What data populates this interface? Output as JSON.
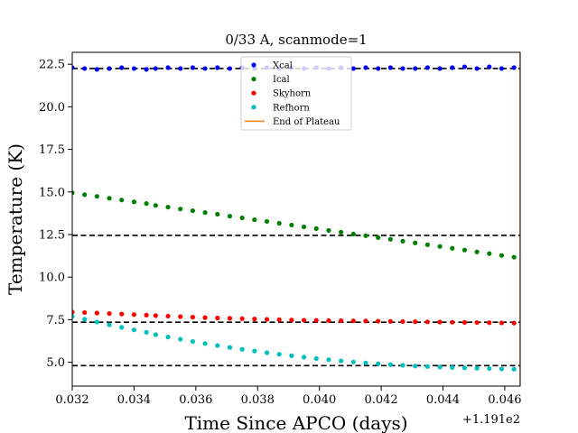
{
  "chart_data": {
    "type": "scatter",
    "title": "0/33 A, scanmode=1",
    "xlabel": "Time Since APCO (days)",
    "ylabel": "Temperature (K)",
    "x_offset_label": "+1.191e2",
    "xlim": [
      0.032,
      0.0465
    ],
    "ylim": [
      3.6,
      23.2
    ],
    "xticks": [
      0.032,
      0.034,
      0.036,
      0.038,
      0.04,
      0.042,
      0.044,
      0.046
    ],
    "xtick_labels": [
      "0.032",
      "0.034",
      "0.036",
      "0.038",
      "0.040",
      "0.042",
      "0.044",
      "0.046"
    ],
    "yticks": [
      5.0,
      7.5,
      10.0,
      12.5,
      15.0,
      17.5,
      20.0,
      22.5
    ],
    "ytick_labels": [
      "5.0",
      "7.5",
      "10.0",
      "12.5",
      "15.0",
      "17.5",
      "20.0",
      "22.5"
    ],
    "legend_position": "upper-center",
    "grid": false,
    "x": [
      0.032,
      0.0324,
      0.0328,
      0.0332,
      0.0336,
      0.034,
      0.0344,
      0.0347,
      0.0351,
      0.0355,
      0.0359,
      0.0363,
      0.0367,
      0.0371,
      0.0375,
      0.0379,
      0.0383,
      0.0387,
      0.0391,
      0.0395,
      0.0399,
      0.0403,
      0.0407,
      0.0411,
      0.0415,
      0.0419,
      0.0423,
      0.0427,
      0.0431,
      0.0435,
      0.0439,
      0.0443,
      0.0447,
      0.0451,
      0.0455,
      0.0459,
      0.0463
    ],
    "series": [
      {
        "name": "Xcal",
        "color": "#0000ff",
        "values": [
          22.3,
          22.25,
          22.2,
          22.25,
          22.3,
          22.25,
          22.2,
          22.25,
          22.3,
          22.25,
          22.3,
          22.25,
          22.3,
          22.25,
          22.3,
          22.25,
          22.3,
          22.25,
          22.3,
          22.25,
          22.3,
          22.25,
          22.3,
          22.25,
          22.3,
          22.25,
          22.3,
          22.25,
          22.25,
          22.3,
          22.25,
          22.3,
          22.35,
          22.25,
          22.35,
          22.25,
          22.3
        ]
      },
      {
        "name": "Ical",
        "color": "#008000",
        "values": [
          14.95,
          14.84,
          14.74,
          14.63,
          14.53,
          14.42,
          14.32,
          14.21,
          14.11,
          14.0,
          13.9,
          13.79,
          13.69,
          13.58,
          13.48,
          13.37,
          13.27,
          13.16,
          13.06,
          12.95,
          12.85,
          12.74,
          12.64,
          12.53,
          12.43,
          12.32,
          12.22,
          12.11,
          12.01,
          11.9,
          11.8,
          11.69,
          11.59,
          11.48,
          11.38,
          11.27,
          11.17
        ]
      },
      {
        "name": "Skyhorn",
        "color": "#ff0000",
        "values": [
          7.95,
          7.92,
          7.89,
          7.86,
          7.83,
          7.8,
          7.77,
          7.74,
          7.71,
          7.68,
          7.65,
          7.62,
          7.6,
          7.58,
          7.56,
          7.54,
          7.52,
          7.5,
          7.48,
          7.47,
          7.46,
          7.45,
          7.44,
          7.43,
          7.42,
          7.41,
          7.4,
          7.39,
          7.38,
          7.37,
          7.36,
          7.35,
          7.34,
          7.33,
          7.32,
          7.31,
          7.3
        ]
      },
      {
        "name": "Refhorn",
        "color": "#00bfbf",
        "values": [
          7.7,
          7.52,
          7.36,
          7.2,
          7.05,
          6.9,
          6.76,
          6.62,
          6.48,
          6.35,
          6.22,
          6.1,
          5.98,
          5.87,
          5.76,
          5.66,
          5.56,
          5.47,
          5.38,
          5.3,
          5.22,
          5.15,
          5.08,
          5.02,
          4.96,
          4.91,
          4.86,
          4.82,
          4.78,
          4.75,
          4.72,
          4.69,
          4.67,
          4.65,
          4.63,
          4.61,
          4.59
        ]
      }
    ],
    "plateau_lines": [
      {
        "color": "#000000",
        "y": 22.25
      },
      {
        "color": "#000000",
        "y": 12.45
      },
      {
        "color": "#000000",
        "y": 7.35
      },
      {
        "color": "#000000",
        "y": 4.8
      }
    ],
    "end_of_plateau": {
      "name": "End of Plateau",
      "color": "#ff7f0e",
      "x": 0.0465
    }
  }
}
